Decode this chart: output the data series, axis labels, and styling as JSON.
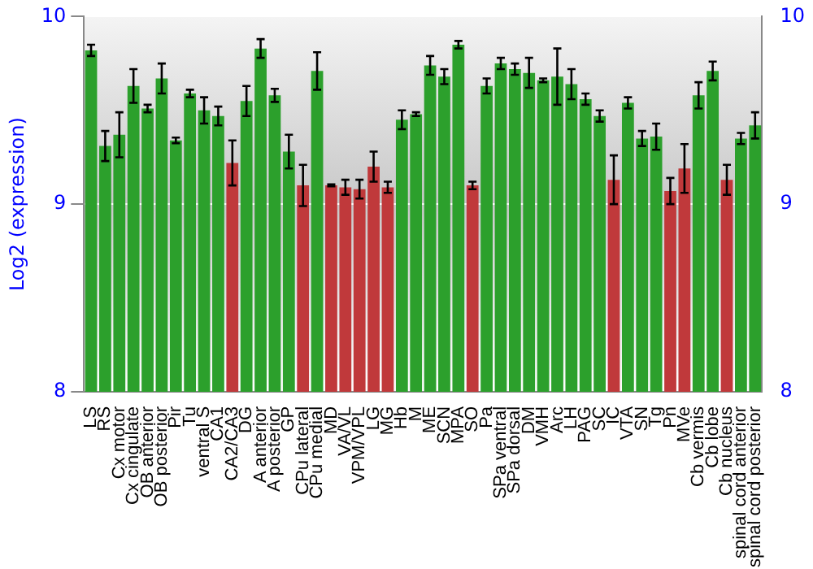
{
  "chart_data": {
    "type": "bar",
    "ylabel": "Log2 (expression)",
    "categories": [
      "LS",
      "RS",
      "Cx motor",
      "Cx cingulate",
      "OB anterior",
      "OB posterior",
      "Pir",
      "Tu",
      "ventral S",
      "CA1",
      "CA2/CA3",
      "DG",
      "A anterior",
      "A posterior",
      "GP",
      "CPu lateral",
      "CPu medial",
      "MD",
      "VA/VL",
      "VPM/VPL",
      "LG",
      "MG",
      "Hb",
      "M",
      "ME",
      "SCN",
      "MPA",
      "SO",
      "Pa",
      "SPa ventral",
      "SPa dorsal",
      "DM",
      "VMH",
      "Arc",
      "LH",
      "PAG",
      "SC",
      "IC",
      "VTA",
      "SN",
      "Tg",
      "Pn",
      "MVe",
      "Cb vermis",
      "Cb lobe",
      "Cb nucleus",
      "spinal cord anterior",
      "spinal cord posterior"
    ],
    "values": [
      9.82,
      9.31,
      9.37,
      9.63,
      9.51,
      9.67,
      9.34,
      9.59,
      9.5,
      9.47,
      9.22,
      9.55,
      9.83,
      9.58,
      9.28,
      9.1,
      9.71,
      9.1,
      9.09,
      9.08,
      9.2,
      9.09,
      9.45,
      9.48,
      9.74,
      9.68,
      9.85,
      9.1,
      9.63,
      9.75,
      9.72,
      9.7,
      9.66,
      9.68,
      9.64,
      9.56,
      9.47,
      9.13,
      9.54,
      9.35,
      9.36,
      9.07,
      9.19,
      9.58,
      9.71,
      9.13,
      9.35,
      9.42
    ],
    "errors": [
      0.03,
      0.08,
      0.12,
      0.09,
      0.02,
      0.08,
      0.015,
      0.02,
      0.07,
      0.05,
      0.12,
      0.08,
      0.05,
      0.035,
      0.09,
      0.11,
      0.1,
      0.005,
      0.04,
      0.05,
      0.08,
      0.03,
      0.05,
      0.01,
      0.05,
      0.04,
      0.02,
      0.02,
      0.04,
      0.03,
      0.03,
      0.08,
      0.01,
      0.15,
      0.08,
      0.03,
      0.03,
      0.13,
      0.03,
      0.04,
      0.07,
      0.07,
      0.13,
      0.07,
      0.05,
      0.08,
      0.03,
      0.07
    ],
    "colors": [
      "#2ca02c",
      "#2ca02c",
      "#2ca02c",
      "#2ca02c",
      "#2ca02c",
      "#2ca02c",
      "#2ca02c",
      "#2ca02c",
      "#2ca02c",
      "#2ca02c",
      "#c0393b",
      "#2ca02c",
      "#2ca02c",
      "#2ca02c",
      "#2ca02c",
      "#c0393b",
      "#2ca02c",
      "#c0393b",
      "#c0393b",
      "#c0393b",
      "#c0393b",
      "#c0393b",
      "#2ca02c",
      "#2ca02c",
      "#2ca02c",
      "#2ca02c",
      "#2ca02c",
      "#c0393b",
      "#2ca02c",
      "#2ca02c",
      "#2ca02c",
      "#2ca02c",
      "#2ca02c",
      "#2ca02c",
      "#2ca02c",
      "#2ca02c",
      "#2ca02c",
      "#c0393b",
      "#2ca02c",
      "#2ca02c",
      "#2ca02c",
      "#c0393b",
      "#c0393b",
      "#2ca02c",
      "#2ca02c",
      "#c0393b",
      "#2ca02c",
      "#2ca02c"
    ],
    "ylim": [
      8,
      10
    ],
    "yticks": [
      8,
      9,
      10
    ],
    "y2lim": [
      8,
      10
    ],
    "y2ticks": [
      8,
      9,
      10
    ],
    "grid": "y",
    "legend": false
  }
}
